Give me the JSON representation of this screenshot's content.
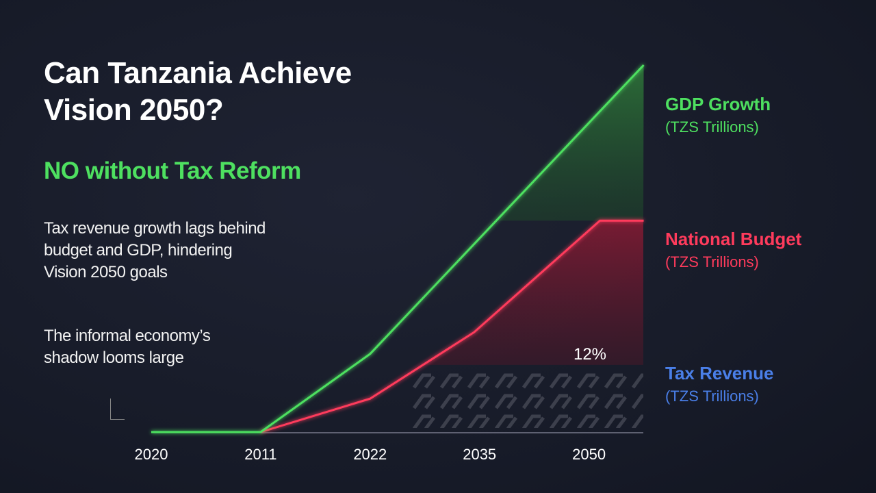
{
  "title_lines": [
    "Can Tanzania Achieve",
    "Vision 2050?"
  ],
  "subtitle": "NO without Tax Reform",
  "notes": [
    "Tax revenue growth lags behind budget and GDP, hindering Vision 2050 goals",
    "The informal economy’s shadow looms large"
  ],
  "colors": {
    "gdp": "#4ee060",
    "budget": "#ff3b5c",
    "tax": "#4a7fe8",
    "background": "#181c2a",
    "informal_pattern": "#5a5d6a"
  },
  "chart_data": {
    "type": "line",
    "title": "Can Tanzania Achieve Vision 2050?",
    "x_tick_labels": [
      "2020",
      "2011",
      "2022",
      "2035",
      "2050"
    ],
    "y_axis": "none (no y ticks printed); values are relative estimates",
    "ylim": [
      0,
      100
    ],
    "grid": false,
    "legend_placement": "right",
    "series": [
      {
        "name": "GDP Growth",
        "unit": "(TZS Trillions)",
        "color": "#4ee060",
        "points": [
          [
            0,
            0
          ],
          [
            1,
            0
          ],
          [
            2,
            21.3
          ],
          [
            4.5,
            100
          ]
        ],
        "filled_area": true
      },
      {
        "name": "National Budget",
        "unit": "(TZS Trillions)",
        "color": "#ff3b5c",
        "points": [
          [
            1,
            0
          ],
          [
            2,
            9.1
          ],
          [
            2.95,
            27.2
          ],
          [
            4.1,
            57.6
          ],
          [
            4.5,
            57.6
          ]
        ],
        "reference_level": 57.6,
        "filled_area": true
      },
      {
        "name": "Tax Revenue",
        "unit": "(TZS Trillions)",
        "color": "#4a7fe8",
        "level": 18.3,
        "annotation": "12%"
      }
    ],
    "annotations": [
      "12%"
    ],
    "informal_economy_pattern": "hatched area below tax revenue line"
  }
}
